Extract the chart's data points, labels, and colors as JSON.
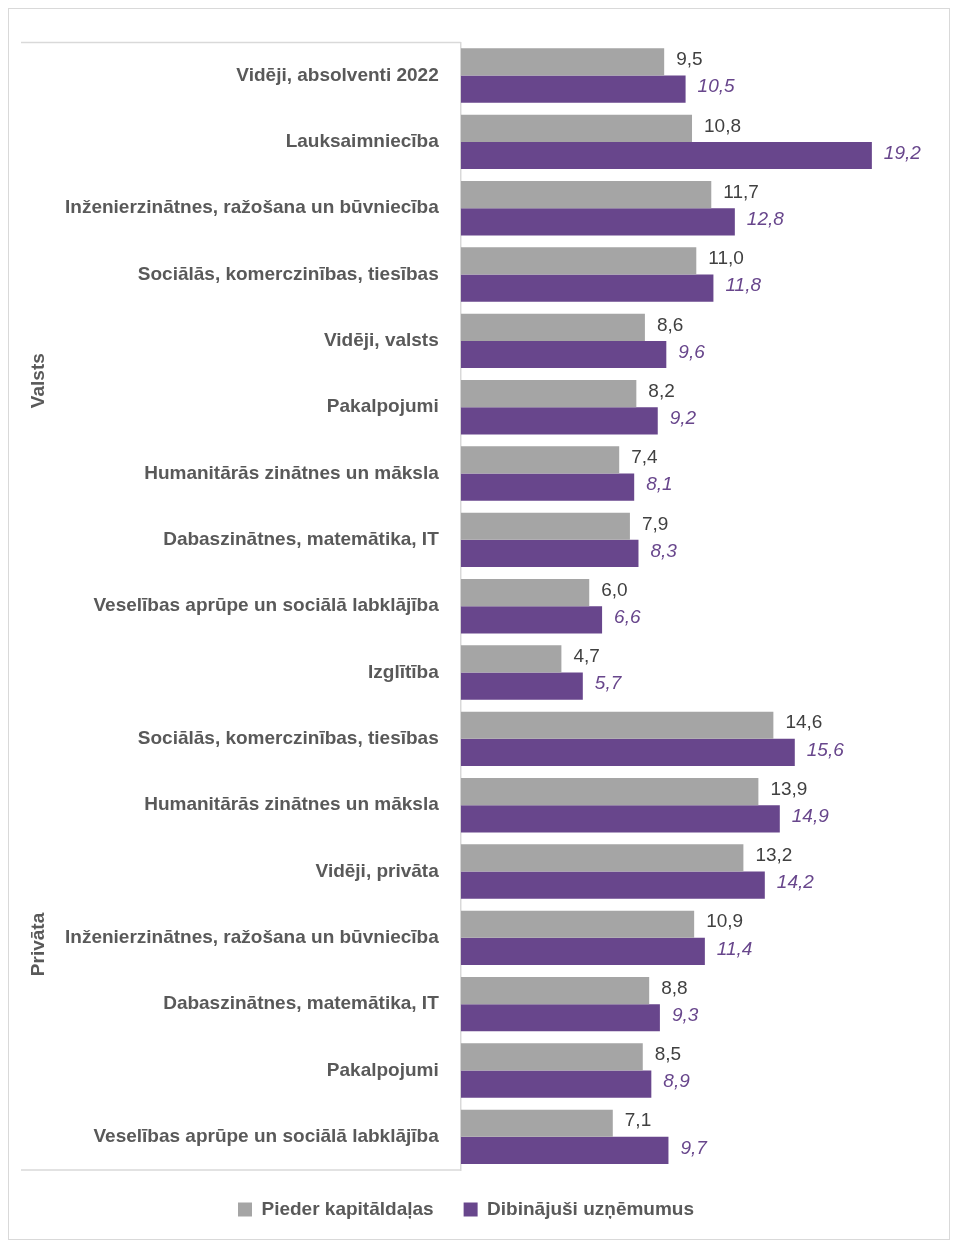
{
  "chart_data": {
    "type": "bar",
    "orientation": "horizontal",
    "categories": [
      "Vidēji, absolventi 2022",
      "Lauksaimniecība",
      "Inženierzinātnes, ražošana un būvniecība",
      "Sociālās, komerczinības, tiesības",
      "Vidēji, valsts",
      "Pakalpojumi",
      "Humanitārās zinātnes un māksla",
      "Dabaszinātnes, matemātika, IT",
      "Veselības aprūpe un sociālā labklājība",
      "Izglītība",
      "Sociālās, komerczinības, tiesības",
      "Humanitārās zinātnes un māksla",
      "Vidēji, privāta",
      "Inženierzinātnes, ražošana un būvniecība",
      "Dabaszinātnes, matemātika, IT",
      "Pakalpojumi",
      "Veselības aprūpe un sociālā labklājība"
    ],
    "series": [
      {
        "name": "Pieder kapitāldaļas",
        "color": "#a5a5a5",
        "values": [
          9.5,
          10.8,
          11.7,
          11.0,
          8.6,
          8.2,
          7.4,
          7.9,
          6.0,
          4.7,
          14.6,
          13.9,
          13.2,
          10.9,
          8.8,
          8.5,
          7.1
        ],
        "value_labels": [
          "9,5",
          "10,8",
          "11,7",
          "11,0",
          "8,6",
          "8,2",
          "7,4",
          "7,9",
          "6,0",
          "4,7",
          "14,6",
          "13,9",
          "13,2",
          "10,9",
          "8,8",
          "8,5",
          "7,1"
        ]
      },
      {
        "name": "Dibinājuši uzņēmumus",
        "color": "#68468c",
        "values": [
          10.5,
          19.2,
          12.8,
          11.8,
          9.6,
          9.2,
          8.1,
          8.3,
          6.6,
          5.7,
          15.6,
          14.9,
          14.2,
          11.4,
          9.3,
          8.9,
          9.7
        ],
        "value_labels": [
          "10,5",
          "19,2",
          "12,8",
          "11,8",
          "9,6",
          "9,2",
          "8,1",
          "8,3",
          "6,6",
          "5,7",
          "15,6",
          "14,9",
          "14,2",
          "11,4",
          "9,3",
          "8,9",
          "9,7"
        ]
      }
    ],
    "annotations": [
      "Valsts",
      "Privāta"
    ],
    "legend": "bottom",
    "grid": false
  }
}
